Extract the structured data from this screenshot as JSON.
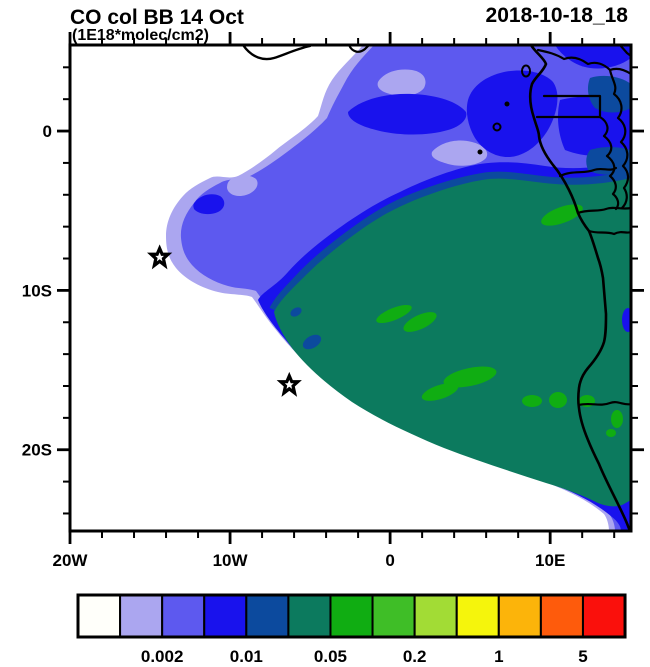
{
  "header": {
    "title": "CO col BB 14 Oct",
    "subtitle": "(1E18*molec/cm2)",
    "timestamp": "2018-10-18_18"
  },
  "chart_data": {
    "type": "filled-contour-map",
    "title": "CO col BB 14 Oct",
    "units": "1E18*molec/cm2",
    "valid_time": "2018-10-18_18",
    "projection": "lon-lat",
    "lon_range": [
      -20,
      15.05
    ],
    "lat_range": [
      -25.1,
      5.4
    ],
    "x_axis": {
      "minor_step_deg": 2,
      "major": [
        {
          "deg": -20,
          "label": "20W"
        },
        {
          "deg": -10,
          "label": "10W"
        },
        {
          "deg": 0,
          "label": "0"
        },
        {
          "deg": 10,
          "label": "10E"
        }
      ]
    },
    "y_axis": {
      "minor_step_deg": 2,
      "major": [
        {
          "deg": 0,
          "label": "0"
        },
        {
          "deg": -10,
          "label": "10S"
        },
        {
          "deg": -20,
          "label": "20S"
        }
      ]
    },
    "colorbar": {
      "colors": [
        "#fffffa",
        "#aba6f0",
        "#5d59ef",
        "#1912ed",
        "#0c4a9e",
        "#0c7a5e",
        "#10ad12",
        "#3fbe27",
        "#a2dc35",
        "#f5f50c",
        "#fcb40a",
        "#fe5b0c",
        "#fa100c"
      ],
      "boundary_labels": [
        {
          "index": 2,
          "label": "0.002"
        },
        {
          "index": 4,
          "label": "0.01"
        },
        {
          "index": 6,
          "label": "0.05"
        },
        {
          "index": 8,
          "label": "0.2"
        },
        {
          "index": 10,
          "label": "1"
        },
        {
          "index": 12,
          "label": "5"
        }
      ]
    },
    "markers": [
      {
        "type": "star",
        "lon": -14.4,
        "lat": -7.9
      },
      {
        "type": "star",
        "lon": -6.3,
        "lat": -15.9
      }
    ]
  }
}
